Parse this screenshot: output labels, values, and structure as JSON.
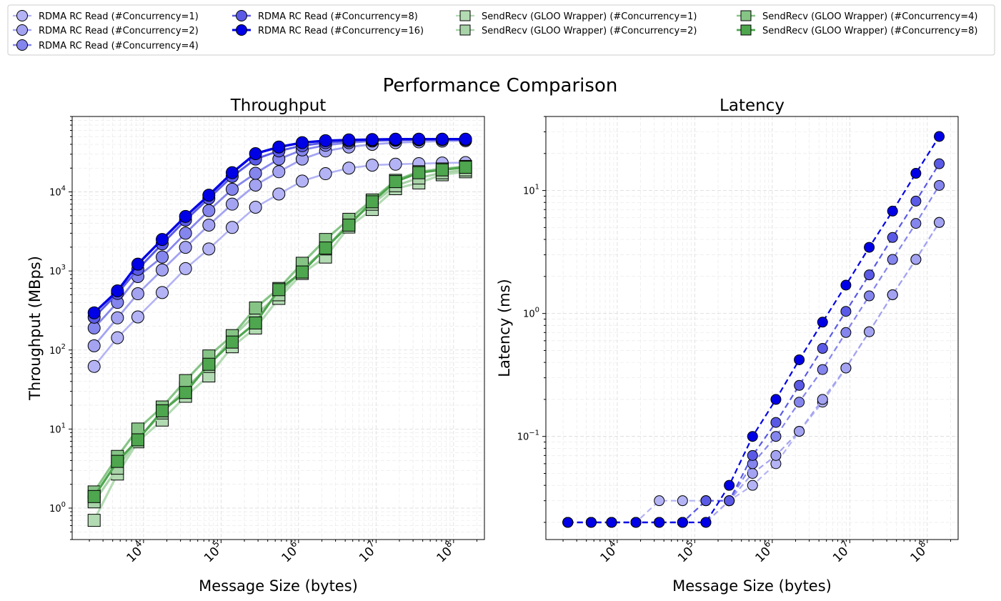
{
  "figure": {
    "suptitle": "Performance Comparison"
  },
  "legend": [
    {
      "label": "RDMA RC Read (#Concurrency=1)",
      "color": "#b3b3f5",
      "marker": "circle",
      "alpha": 1
    },
    {
      "label": "RDMA RC Read (#Concurrency=2)",
      "color": "#a3a3f2",
      "marker": "circle",
      "alpha": 1
    },
    {
      "label": "RDMA RC Read (#Concurrency=4)",
      "color": "#8585ee",
      "marker": "circle",
      "alpha": 1
    },
    {
      "label": "RDMA RC Read (#Concurrency=8)",
      "color": "#5a5ae6",
      "marker": "circle",
      "alpha": 1
    },
    {
      "label": "RDMA RC Read (#Concurrency=16)",
      "color": "#0000e6",
      "marker": "circle",
      "alpha": 1
    },
    {
      "label": "SendRecv (GLOO Wrapper) (#Concurrency=1)",
      "color": "#b3dbb3",
      "marker": "square",
      "alpha": 1
    },
    {
      "label": "SendRecv (GLOO Wrapper) (#Concurrency=2)",
      "color": "#a8d3a8",
      "marker": "square",
      "alpha": 1
    },
    {
      "label": "SendRecv (GLOO Wrapper) (#Concurrency=4)",
      "color": "#86c486",
      "marker": "square",
      "alpha": 1
    },
    {
      "label": "SendRecv (GLOO Wrapper) (#Concurrency=8)",
      "color": "#4ea64e",
      "marker": "square",
      "alpha": 1
    }
  ],
  "chart_data": [
    {
      "type": "line",
      "title": "Throughput",
      "xlabel": "Message Size (bytes)",
      "ylabel": "Throughput (MBps)",
      "xscale": "log",
      "yscale": "log",
      "xlim": [
        1200,
        250000000
      ],
      "ylim": [
        0.4,
        90000
      ],
      "grid": true,
      "x_ticks": [
        {
          "value": 10000,
          "base": "10",
          "exp": "4"
        },
        {
          "value": 100000,
          "base": "10",
          "exp": "5"
        },
        {
          "value": 1000000,
          "base": "10",
          "exp": "6"
        },
        {
          "value": 10000000,
          "base": "10",
          "exp": "7"
        },
        {
          "value": 100000000,
          "base": "10",
          "exp": "8"
        }
      ],
      "y_ticks": [
        {
          "value": 1,
          "base": "10",
          "exp": "0"
        },
        {
          "value": 10,
          "base": "10",
          "exp": "1"
        },
        {
          "value": 100,
          "base": "10",
          "exp": "2"
        },
        {
          "value": 1000,
          "base": "10",
          "exp": "3"
        },
        {
          "value": 10000,
          "base": "10",
          "exp": "4"
        }
      ],
      "x": [
        2304,
        4608,
        8448,
        17408,
        34816,
        69632,
        139264,
        278528,
        557056,
        1114112,
        2228224,
        4456448,
        8912896,
        17825792,
        35651584,
        71303168,
        142606336
      ],
      "series": [
        {
          "legend_index": 0,
          "values": [
            62,
            143,
            262,
            533,
            1070,
            1900,
            3550,
            6400,
            9400,
            13700,
            17000,
            20000,
            21800,
            22400,
            22800,
            23200,
            23500
          ]
        },
        {
          "legend_index": 1,
          "values": [
            113,
            255,
            515,
            1030,
            1990,
            3800,
            7000,
            12200,
            18000,
            26000,
            33000,
            37000,
            40000,
            42000,
            43000,
            44000,
            44500
          ]
        },
        {
          "legend_index": 2,
          "values": [
            190,
            400,
            850,
            1500,
            3000,
            5800,
            10800,
            17200,
            26000,
            34000,
            39000,
            42000,
            44000,
            45000,
            45500,
            46000,
            46000
          ]
        },
        {
          "legend_index": 3,
          "values": [
            260,
            520,
            1050,
            2200,
            4400,
            8300,
            15700,
            26000,
            33000,
            38500,
            42000,
            44000,
            45000,
            45500,
            46000,
            46000,
            46000
          ]
        },
        {
          "legend_index": 4,
          "values": [
            295,
            560,
            1220,
            2500,
            4900,
            9100,
            17500,
            30500,
            37000,
            42000,
            44500,
            45500,
            46000,
            46500,
            46500,
            46500,
            46500
          ]
        },
        {
          "legend_index": 5,
          "values": [
            0.7,
            2.7,
            6.9,
            13,
            26,
            47,
            110,
            190,
            450,
            930,
            1500,
            3600,
            6000,
            11000,
            13000,
            16500,
            18000
          ]
        },
        {
          "legend_index": 6,
          "values": [
            1.2,
            3.2,
            7.5,
            16,
            33,
            62,
            145,
            280,
            500,
            1050,
            1900,
            4100,
            7000,
            12000,
            15000,
            17500,
            19000
          ]
        },
        {
          "legend_index": 7,
          "values": [
            1.6,
            4.5,
            10,
            19,
            41,
            84,
            152,
            340,
            600,
            1250,
            2500,
            4500,
            7900,
            14000,
            18000,
            19500,
            21000
          ]
        },
        {
          "legend_index": 8,
          "values": [
            1.4,
            3.9,
            7.3,
            17,
            29,
            66,
            126,
            220,
            580,
            970,
            1950,
            3800,
            7500,
            13500,
            17500,
            19000,
            20500
          ]
        }
      ]
    },
    {
      "type": "line",
      "title": "Latency",
      "xlabel": "Message Size (bytes)",
      "ylabel": "Latency (ms)",
      "xscale": "log",
      "yscale": "log",
      "xlim": [
        1200,
        250000000
      ],
      "ylim": [
        0.0145,
        40
      ],
      "grid": true,
      "x_ticks": [
        {
          "value": 10000,
          "base": "10",
          "exp": "4"
        },
        {
          "value": 100000,
          "base": "10",
          "exp": "5"
        },
        {
          "value": 1000000,
          "base": "10",
          "exp": "6"
        },
        {
          "value": 10000000,
          "base": "10",
          "exp": "7"
        },
        {
          "value": 100000000,
          "base": "10",
          "exp": "8"
        }
      ],
      "y_ticks": [
        {
          "value": 0.1,
          "base": "10",
          "exp": "−1"
        },
        {
          "value": 1,
          "base": "10",
          "exp": "0"
        },
        {
          "value": 10,
          "base": "10",
          "exp": "1"
        }
      ],
      "x": [
        2304,
        4608,
        8448,
        17408,
        34816,
        69632,
        139264,
        278528,
        557056,
        1114112,
        2228224,
        4456448,
        8912896,
        17825792,
        35651584,
        71303168,
        142606336
      ],
      "series": [
        {
          "legend_index": 0,
          "values": [
            0.02,
            0.02,
            0.02,
            0.02,
            0.03,
            0.03,
            0.03,
            0.03,
            0.04,
            0.06,
            0.11,
            0.19,
            0.36,
            0.71,
            1.42,
            2.75,
            5.5
          ]
        },
        {
          "legend_index": 1,
          "values": [
            0.02,
            0.02,
            0.02,
            0.02,
            0.02,
            0.02,
            0.02,
            0.03,
            0.05,
            0.07,
            0.11,
            0.2,
            0.36,
            0.71,
            1.42,
            2.75,
            5.5
          ]
        },
        {
          "legend_index": 2,
          "values": [
            0.02,
            0.02,
            0.02,
            0.02,
            0.02,
            0.02,
            0.03,
            0.03,
            0.06,
            0.1,
            0.19,
            0.35,
            0.7,
            1.39,
            2.75,
            5.4,
            11
          ]
        },
        {
          "legend_index": 3,
          "values": [
            0.02,
            0.02,
            0.02,
            0.02,
            0.02,
            0.02,
            0.03,
            0.03,
            0.07,
            0.13,
            0.26,
            0.52,
            1.04,
            2.06,
            4.15,
            8.2,
            16.5
          ]
        },
        {
          "legend_index": 4,
          "values": [
            0.02,
            0.02,
            0.02,
            0.02,
            0.02,
            0.02,
            0.02,
            0.04,
            0.1,
            0.2,
            0.42,
            0.85,
            1.7,
            3.45,
            6.8,
            13.8,
            27.5
          ]
        }
      ]
    }
  ]
}
